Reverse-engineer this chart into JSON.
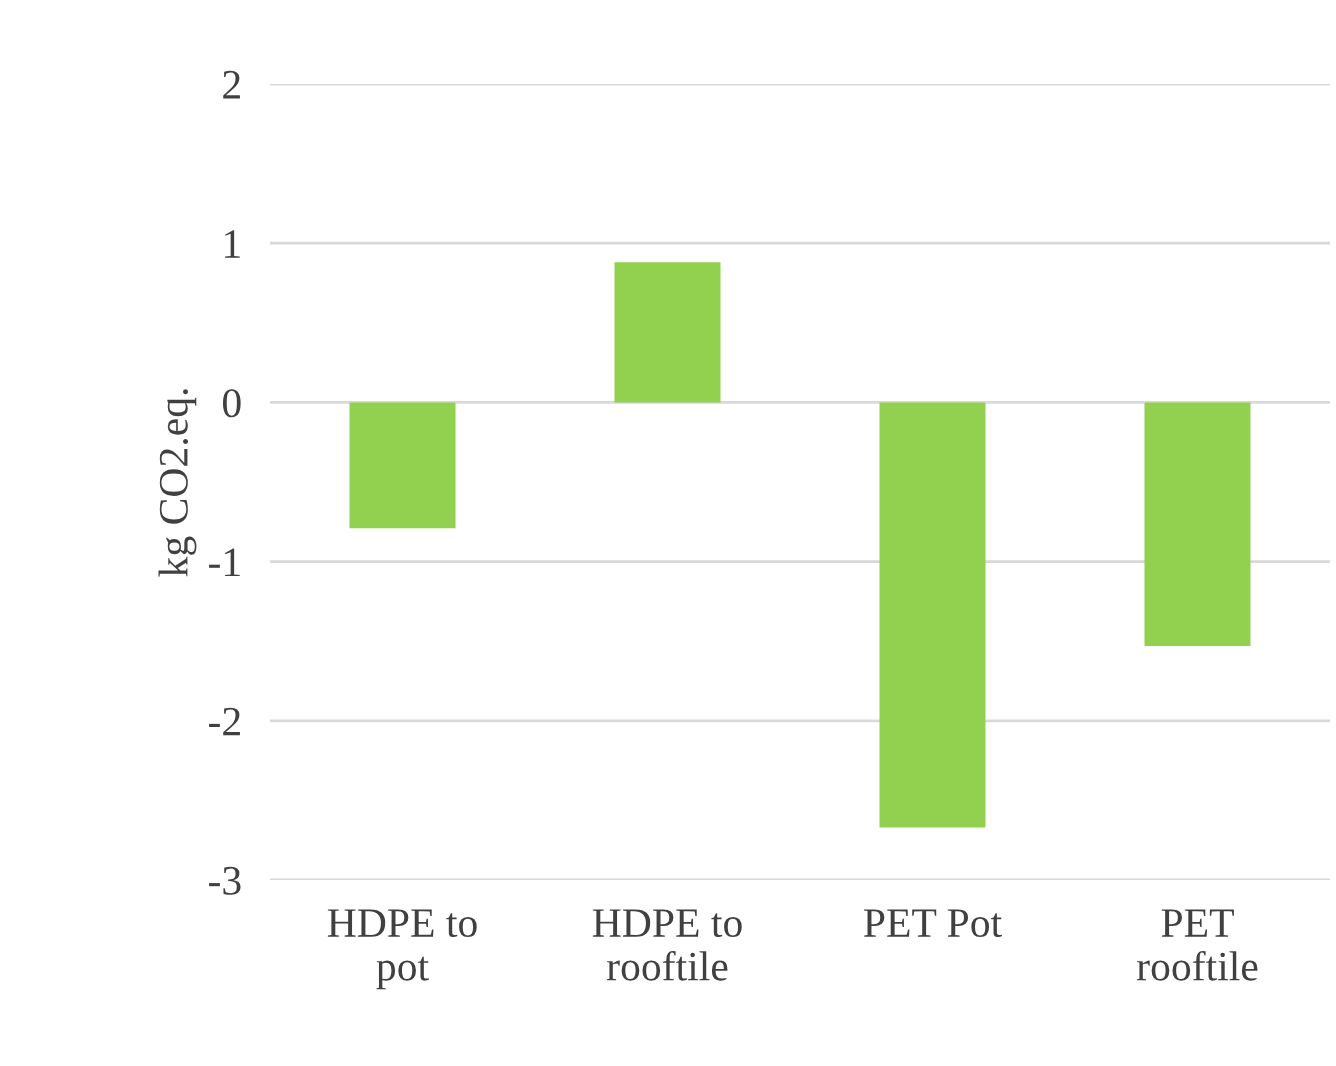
{
  "chart_data": {
    "type": "bar",
    "ylabel": "kg CO2.eq.",
    "categories": [
      "HDPE to\npot",
      "HDPE to\nrooftile",
      "PET Pot",
      "PET\nrooftile"
    ],
    "values": [
      -0.79,
      0.88,
      -2.67,
      -1.53
    ],
    "color": "#92d050",
    "ylim": [
      -3,
      2
    ],
    "yticks": [
      -3,
      -2,
      -1,
      0,
      1,
      2
    ],
    "grid": "y"
  }
}
